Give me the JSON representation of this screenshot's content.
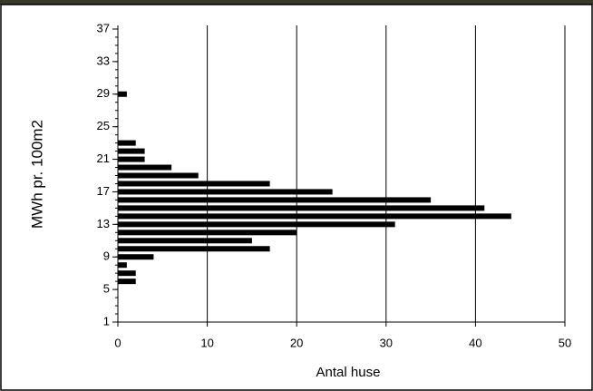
{
  "chart_data": {
    "type": "hbar",
    "xlabel": "Antal huse",
    "ylabel": "MWh pr. 100m2",
    "y": [
      6,
      7,
      8,
      9,
      10,
      11,
      12,
      13,
      14,
      15,
      16,
      17,
      18,
      19,
      20,
      21,
      22,
      23,
      29
    ],
    "values": [
      2,
      2,
      1,
      4,
      17,
      15,
      20,
      31,
      44,
      41,
      35,
      24,
      17,
      9,
      6,
      3,
      3,
      2,
      1
    ],
    "color": "#000000",
    "xlim": [
      0,
      50
    ],
    "xticks": [
      0,
      10,
      20,
      30,
      40,
      50
    ],
    "ylim": [
      1,
      37
    ],
    "yticks": [
      1,
      5,
      9,
      13,
      17,
      21,
      25,
      29,
      33,
      37
    ],
    "grid": true
  }
}
